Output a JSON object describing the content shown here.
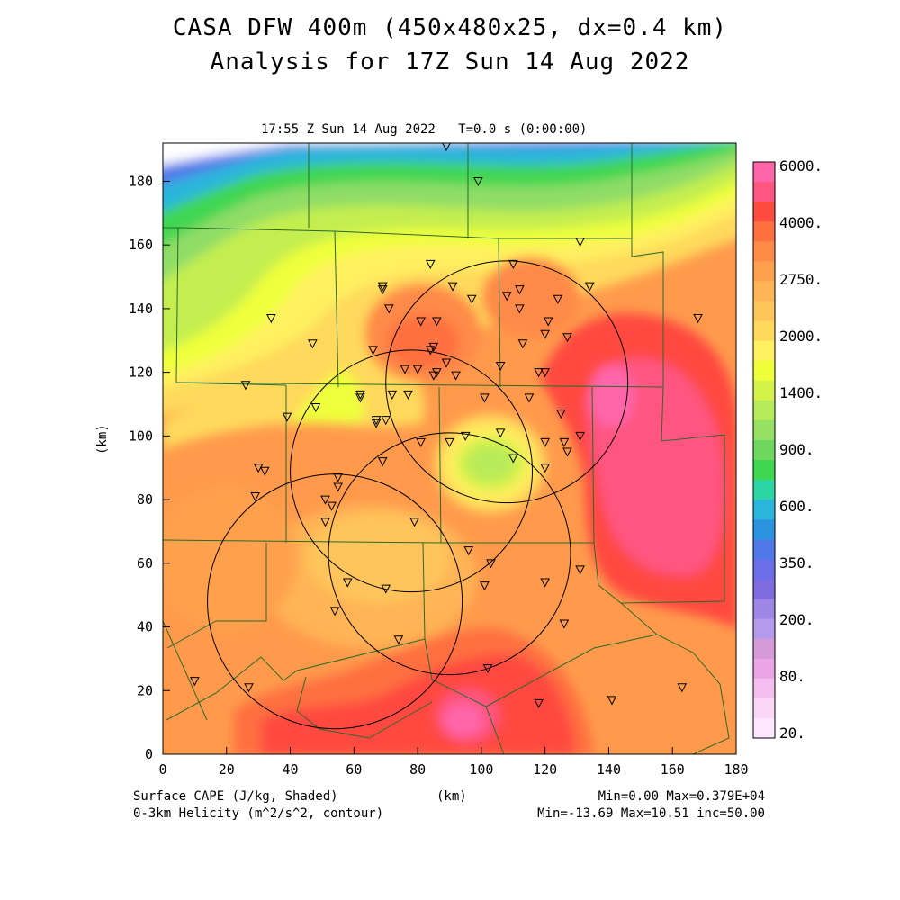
{
  "title_line1": "CASA DFW 400m (450x480x25, dx=0.4 km)",
  "title_line2": "Analysis for 17Z Sun 14 Aug 2022",
  "subtitle": "17:55 Z Sun 14 Aug 2022   T=0.0 s (0:00:00)",
  "axes": {
    "x_label": "(km)",
    "y_label": "(km)",
    "x_ticks": [
      "0",
      "20",
      "40",
      "60",
      "80",
      "100",
      "120",
      "140",
      "160",
      "180"
    ],
    "y_ticks": [
      "0",
      "20",
      "40",
      "60",
      "80",
      "100",
      "120",
      "140",
      "160",
      "180"
    ],
    "x_range": [
      0,
      180
    ],
    "y_range": [
      0,
      192
    ]
  },
  "colorbar": {
    "labels": [
      "6000.",
      "4000.",
      "2750.",
      "2000.",
      "1400.",
      "900.",
      "600.",
      "350.",
      "200.",
      "80.",
      "20."
    ],
    "colors": [
      "#ff66aa",
      "#ff5580",
      "#ff4a40",
      "#ff6f3f",
      "#ff8a48",
      "#ffa04e",
      "#ffb455",
      "#ffc55b",
      "#ffd95c",
      "#fff060",
      "#eeff3a",
      "#d4f24a",
      "#b8eb5a",
      "#96e163",
      "#6fd65f",
      "#3fd652",
      "#2bd6a4",
      "#2ab6dc",
      "#2a94e0",
      "#4f78ea",
      "#6b6ee8",
      "#7f6be0",
      "#9e86e6",
      "#b49aec",
      "#d79ad9",
      "#eba4e6",
      "#f4bff0",
      "#fbd6f6",
      "#ffe6ff"
    ]
  },
  "footer": {
    "left1": "Surface CAPE (J/kg, Shaded)",
    "left2": "0-3km Helicity (m^2/s^2, contour)",
    "center": "(km)",
    "right1": "Min=0.00 Max=0.379E+04",
    "right2": "Min=-13.69 Max=10.51 inc=50.00"
  },
  "radar_rings": [
    {
      "cx": 108,
      "cy": 117,
      "r": 38
    },
    {
      "cx": 78,
      "cy": 89,
      "r": 38
    },
    {
      "cx": 90,
      "cy": 63,
      "r": 38
    },
    {
      "cx": 54,
      "cy": 48,
      "r": 40
    }
  ],
  "stations": [
    [
      89,
      191
    ],
    [
      99,
      180
    ],
    [
      131,
      161
    ],
    [
      84,
      154
    ],
    [
      110,
      154
    ],
    [
      69,
      147
    ],
    [
      69,
      146
    ],
    [
      91,
      147
    ],
    [
      108,
      144
    ],
    [
      112,
      146
    ],
    [
      97,
      143
    ],
    [
      124,
      143
    ],
    [
      134,
      147
    ],
    [
      71,
      140
    ],
    [
      112,
      140
    ],
    [
      121,
      136
    ],
    [
      34,
      137
    ],
    [
      81,
      136
    ],
    [
      86,
      136
    ],
    [
      120,
      132
    ],
    [
      127,
      131
    ],
    [
      47,
      129
    ],
    [
      85,
      128
    ],
    [
      84,
      127
    ],
    [
      113,
      129
    ],
    [
      66,
      127
    ],
    [
      168,
      137
    ],
    [
      89,
      123
    ],
    [
      76,
      121
    ],
    [
      80,
      121
    ],
    [
      86,
      120
    ],
    [
      92,
      119
    ],
    [
      85,
      119
    ],
    [
      106,
      122
    ],
    [
      118,
      120
    ],
    [
      120,
      120
    ],
    [
      26,
      116
    ],
    [
      77,
      113
    ],
    [
      62,
      113
    ],
    [
      62,
      112
    ],
    [
      72,
      113
    ],
    [
      101,
      112
    ],
    [
      115,
      112
    ],
    [
      125,
      107
    ],
    [
      48,
      109
    ],
    [
      67,
      105
    ],
    [
      70,
      105
    ],
    [
      67,
      104
    ],
    [
      39,
      106
    ],
    [
      106,
      101
    ],
    [
      120,
      98
    ],
    [
      126,
      98
    ],
    [
      131,
      100
    ],
    [
      81,
      98
    ],
    [
      90,
      98
    ],
    [
      95,
      100
    ],
    [
      127,
      95
    ],
    [
      110,
      93
    ],
    [
      69,
      92
    ],
    [
      30,
      90
    ],
    [
      32,
      89
    ],
    [
      120,
      90
    ],
    [
      55,
      87
    ],
    [
      55,
      84
    ],
    [
      29,
      81
    ],
    [
      51,
      80
    ],
    [
      53,
      78
    ],
    [
      51,
      73
    ],
    [
      79,
      73
    ],
    [
      96,
      64
    ],
    [
      103,
      60
    ],
    [
      131,
      58
    ],
    [
      120,
      54
    ],
    [
      101,
      53
    ],
    [
      58,
      54
    ],
    [
      70,
      52
    ],
    [
      54,
      45
    ],
    [
      126,
      41
    ],
    [
      74,
      36
    ],
    [
      102,
      27
    ],
    [
      10,
      23
    ],
    [
      27,
      21
    ],
    [
      118,
      16
    ],
    [
      141,
      17
    ],
    [
      163,
      21
    ]
  ]
}
